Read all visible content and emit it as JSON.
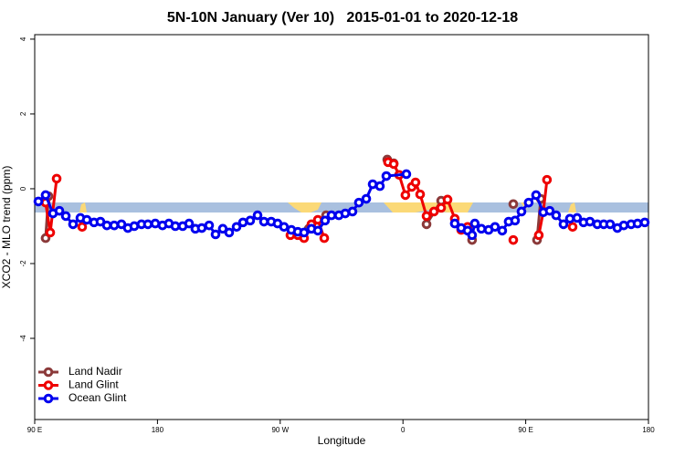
{
  "chart_data": {
    "type": "line",
    "title": "5N-10N January (Ver 10)   2015-01-01 to 2020-12-18",
    "x_label": "Longitude",
    "y_label": "XCO2 - MLO trend (ppm)",
    "xlim": [
      90,
      540
    ],
    "ylim": [
      -6.17,
      4.12
    ],
    "xticks": [
      {
        "value": 90,
        "label": "90 E"
      },
      180,
      {
        "value": 270,
        "label": "90 W"
      },
      {
        "value": 360,
        "label": "0"
      },
      {
        "value": 450,
        "label": "90 E"
      },
      180
    ],
    "yticks": [
      -4,
      -2,
      0,
      2,
      4
    ],
    "legend": "bottom-left",
    "series": [
      {
        "name": "Land Nadir",
        "color": "#8b3a3a",
        "x": [
          98.0,
          100.1,
          null,
          278.2,
          290.9,
          303.6,
          null,
          348.5,
          353.2,
          null,
          377.3,
          388.0,
          null,
          410.7,
          null,
          440.9,
          null,
          458.3,
          461.0
        ],
        "values": [
          -1.32,
          -0.2,
          null,
          -1.2,
          -1.07,
          -0.71,
          null,
          0.78,
          0.68,
          null,
          -0.95,
          -0.32,
          null,
          -1.37,
          null,
          -0.41,
          null,
          -1.37,
          -0.27
        ]
      },
      {
        "name": "Land Glint",
        "color": "#ee0000",
        "x": [
          98.0,
          101.4,
          106.1,
          null,
          124.8,
          null,
          277.5,
          282.9,
          287.5,
          292.9,
          297.6,
          302.3,
          null,
          349.1,
          353.2,
          357.2,
          361.8,
          366.5,
          369.2,
          372.6,
          377.3,
          382.7,
          388.0,
          392.7,
          398.0,
          402.7,
          407.4,
          null,
          440.9,
          null,
          459.6,
          462.9,
          465.6,
          null,
          484.4
        ],
        "values": [
          -0.37,
          -1.17,
          0.27,
          null,
          -1.02,
          null,
          -1.24,
          -1.24,
          -1.32,
          -0.95,
          -0.83,
          -1.32,
          null,
          0.71,
          0.66,
          0.37,
          -0.17,
          0.05,
          0.17,
          -0.15,
          -0.73,
          -0.61,
          -0.51,
          -0.29,
          -0.8,
          -1.1,
          -1.02,
          null,
          -1.37,
          null,
          -1.24,
          -0.61,
          0.24,
          null,
          -1.02
        ]
      },
      {
        "name": "Ocean Glint",
        "color": "#0000ee",
        "x": [
          92.7,
          98.0,
          103.4,
          108.1,
          112.8,
          118.1,
          123.5,
          128.2,
          133.5,
          138.2,
          142.9,
          148.3,
          153.6,
          158.3,
          163.0,
          168.3,
          173.0,
          178.4,
          183.7,
          188.4,
          193.1,
          198.5,
          203.2,
          207.8,
          212.5,
          217.9,
          222.6,
          227.9,
          232.6,
          238.0,
          242.7,
          248.0,
          253.4,
          258.1,
          263.4,
          268.1,
          272.8,
          278.2,
          282.9,
          287.5,
          292.9,
          297.6,
          302.9,
          307.6,
          313.0,
          317.7,
          323.0,
          327.7,
          333.1,
          337.8,
          343.1,
          347.8,
          362.5,
          null,
          398.0,
          402.7,
          407.4,
          410.7,
          412.7,
          417.5,
          422.8,
          427.5,
          432.8,
          437.5,
          442.2,
          446.9,
          452.2,
          457.6,
          462.9,
          467.6,
          472.3,
          477.7,
          482.4,
          487.7,
          492.4,
          497.1,
          502.5,
          507.2,
          511.9,
          517.2,
          521.9,
          527.3,
          532.0,
          537.3
        ],
        "values": [
          -0.34,
          -0.17,
          -0.66,
          -0.59,
          -0.73,
          -0.95,
          -0.78,
          -0.83,
          -0.9,
          -0.88,
          -0.98,
          -0.98,
          -0.95,
          -1.05,
          -1.0,
          -0.95,
          -0.95,
          -0.93,
          -0.98,
          -0.93,
          -1.0,
          -1.0,
          -0.93,
          -1.07,
          -1.05,
          -0.98,
          -1.22,
          -1.07,
          -1.17,
          -1.02,
          -0.9,
          -0.85,
          -0.71,
          -0.88,
          -0.88,
          -0.93,
          -1.02,
          -1.1,
          -1.15,
          -1.17,
          -1.07,
          -1.12,
          -0.85,
          -0.71,
          -0.71,
          -0.66,
          -0.61,
          -0.37,
          -0.27,
          0.12,
          0.07,
          0.34,
          0.39,
          null,
          -0.93,
          -1.05,
          -1.12,
          -1.24,
          -0.93,
          -1.07,
          -1.1,
          -1.02,
          -1.12,
          -0.88,
          -0.85,
          -0.61,
          -0.37,
          -0.17,
          -0.63,
          -0.59,
          -0.71,
          -0.95,
          -0.8,
          -0.78,
          -0.9,
          -0.88,
          -0.95,
          -0.95,
          -0.95,
          -1.05,
          -0.98,
          -0.95,
          -0.93,
          -0.9
        ]
      }
    ]
  }
}
